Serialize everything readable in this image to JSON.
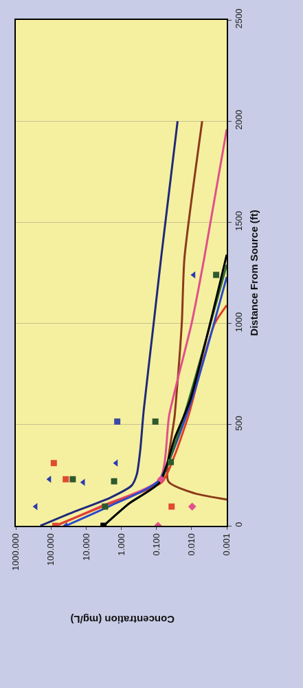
{
  "chart_data": {
    "type": "scatter",
    "xlabel": "Concentration (mg/L)",
    "ylabel": "Distance From Source (ft)",
    "log": "x",
    "grid": "y",
    "xlim": [
      1000,
      0.001
    ],
    "xticks": [
      {
        "value": 1000,
        "label": "1000.000"
      },
      {
        "value": 100,
        "label": "100.000"
      },
      {
        "value": 10,
        "label": "10.000"
      },
      {
        "value": 1,
        "label": "1.000"
      },
      {
        "value": 0.1,
        "label": "0.100"
      },
      {
        "value": 0.01,
        "label": "0.010"
      },
      {
        "value": 0.001,
        "label": "0.001"
      }
    ],
    "ylim": [
      0,
      2500
    ],
    "yticks": [
      0,
      500,
      1000,
      1500,
      2000,
      2500
    ],
    "series": [
      {
        "type": "line",
        "color": "#1f2a7a",
        "marker": "none",
        "x": [
          200,
          30,
          2.0,
          0.5,
          0.36,
          0.29,
          0.23,
          0.12,
          0.074,
          0.043,
          0.025
        ],
        "values": [
          0,
          60,
          140,
          200,
          255,
          370,
          570,
          1000,
          1320,
          1660,
          2000
        ]
      },
      {
        "type": "line",
        "color": "#8b3a1a",
        "marker": "none",
        "x": [
          0.001,
          0.008,
          0.046,
          0.03,
          0.019,
          0.016,
          0.005
        ],
        "values": [
          130,
          160,
          220,
          550,
          1000,
          1320,
          2000
        ]
      },
      {
        "type": "line",
        "color": "#e0508a",
        "marker": "none",
        "x": [
          70,
          4,
          0.08,
          0.043,
          0.01,
          0.0044,
          0.001
        ],
        "values": [
          0,
          95,
          230,
          550,
          1000,
          1320,
          1960
        ]
      },
      {
        "type": "line",
        "color": "#e0402a",
        "marker": "none",
        "x": [
          75,
          3,
          0.07,
          0.03,
          0.012,
          0.005,
          0.0022,
          0.001
        ],
        "values": [
          0,
          100,
          215,
          350,
          550,
          800,
          1000,
          1090
        ]
      },
      {
        "type": "line",
        "color": "#2a4acc",
        "marker": "none",
        "x": [
          38,
          2,
          0.09,
          0.01,
          0.001
        ],
        "values": [
          0,
          100,
          220,
          620,
          1230
        ]
      },
      {
        "type": "line",
        "color": "#2e6b2e",
        "marker": "none",
        "x": [
          3.2,
          0.6,
          0.08,
          0.016,
          0.001
        ],
        "values": [
          0,
          110,
          215,
          550,
          1290
        ]
      },
      {
        "type": "line",
        "color": "#000000",
        "marker": "none",
        "x": [
          3.2,
          0.6,
          0.08,
          0.03,
          0.011,
          0.001
        ],
        "values": [
          0,
          110,
          215,
          435,
          620,
          1340
        ]
      },
      {
        "color": "#2a3ab0",
        "marker": "triangle",
        "x": [
          270,
          110,
          1.4,
          0.0087,
          38,
          12
        ],
        "values": [
          95,
          230,
          310,
          1240,
          0,
          215
        ]
      },
      {
        "color": "#3a4aa0",
        "marker": "square",
        "x": [
          1.3
        ],
        "values": [
          515
        ]
      },
      {
        "color": "#e04a30",
        "marker": "square",
        "x": [
          75,
          83,
          38,
          0.037
        ],
        "values": [
          0,
          310,
          230,
          95
        ]
      },
      {
        "color": "#e0508a",
        "marker": "diamond",
        "x": [
          0.09,
          0.0096,
          0.074
        ],
        "values": [
          0,
          95,
          230
        ]
      },
      {
        "color": "#2e5a2e",
        "marker": "square",
        "x": [
          24,
          2.9,
          1.6,
          0.107,
          0.039,
          0.002
        ],
        "values": [
          230,
          95,
          220,
          515,
          315,
          1240
        ]
      },
      {
        "color": "#000000",
        "marker": "square",
        "x": [
          3.2
        ],
        "values": [
          0
        ]
      }
    ]
  }
}
